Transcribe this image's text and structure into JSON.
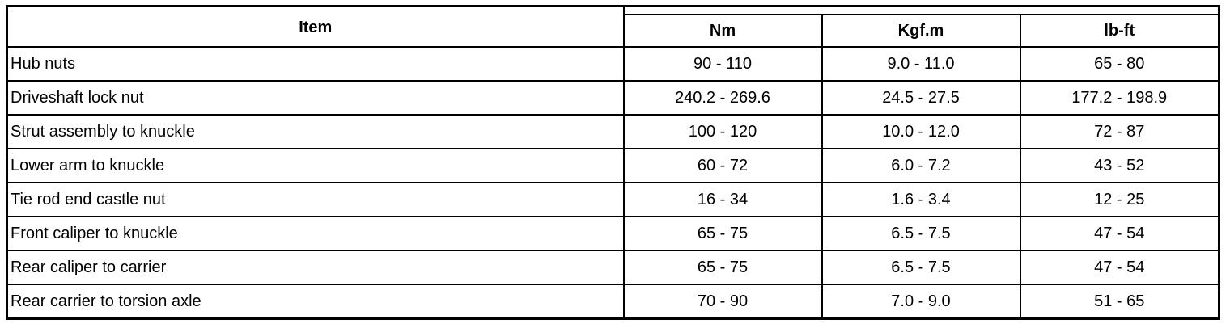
{
  "table": {
    "headers": {
      "item": "Item",
      "units": [
        "Nm",
        "Kgf.m",
        "lb-ft"
      ]
    },
    "rows": [
      {
        "item": "Hub nuts",
        "nm": "90 - 110",
        "kgfm": "9.0 - 11.0",
        "lbft": "65 - 80"
      },
      {
        "item": "Driveshaft lock nut",
        "nm": "240.2 - 269.6",
        "kgfm": "24.5 - 27.5",
        "lbft": "177.2 - 198.9"
      },
      {
        "item": "Strut assembly to knuckle",
        "nm": "100 - 120",
        "kgfm": "10.0 - 12.0",
        "lbft": "72 - 87"
      },
      {
        "item": "Lower arm to knuckle",
        "nm": "60 - 72",
        "kgfm": "6.0 - 7.2",
        "lbft": "43 - 52"
      },
      {
        "item": "Tie rod end castle nut",
        "nm": "16 - 34",
        "kgfm": "1.6 - 3.4",
        "lbft": "12 - 25"
      },
      {
        "item": "Front caliper to knuckle",
        "nm": "65 - 75",
        "kgfm": "6.5 - 7.5",
        "lbft": "47 - 54"
      },
      {
        "item": "Rear caliper to carrier",
        "nm": "65 - 75",
        "kgfm": "6.5 - 7.5",
        "lbft": "47 - 54"
      },
      {
        "item": "Rear carrier to torsion axle",
        "nm": "70 - 90",
        "kgfm": "7.0 - 9.0",
        "lbft": "51 - 65"
      }
    ]
  }
}
